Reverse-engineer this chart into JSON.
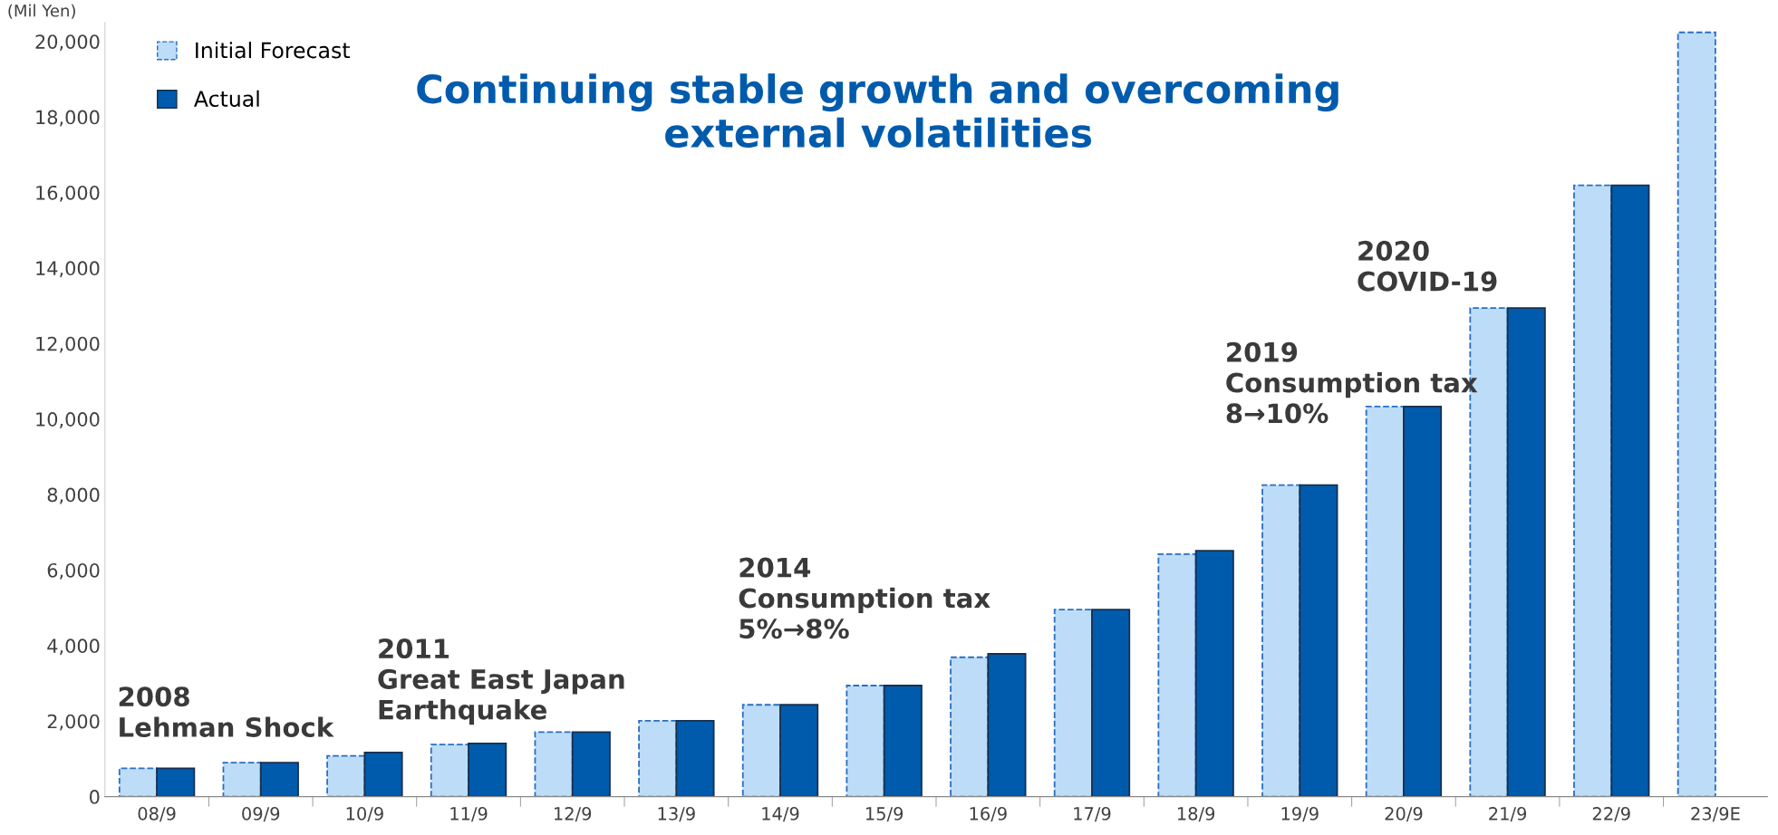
{
  "chart_data": {
    "type": "bar",
    "title": "Continuing stable growth and overcoming\nexternal volatilities",
    "ylabel": "(Mil Yen)",
    "categories": [
      "08/9",
      "09/9",
      "10/9",
      "11/9",
      "12/9",
      "13/9",
      "14/9",
      "15/9",
      "16/9",
      "17/9",
      "18/9",
      "19/9",
      "20/9",
      "21/9",
      "22/9",
      "23/9E"
    ],
    "series": [
      {
        "name": "Initial Forecast",
        "color": "#bddcf7",
        "line_style": "dashed",
        "values": [
          750,
          900,
          1080,
          1380,
          1710,
          2010,
          2430,
          2940,
          3690,
          4950,
          6420,
          8250,
          10330,
          12940,
          16190,
          20240
        ]
      },
      {
        "name": "Actual",
        "color": "#005bac",
        "line_style": "solid",
        "values": [
          750,
          900,
          1170,
          1410,
          1710,
          2010,
          2430,
          2940,
          3780,
          4950,
          6510,
          8250,
          10330,
          12940,
          16190,
          null
        ]
      }
    ],
    "ylim": [
      0,
      20500
    ],
    "yticks": [
      {
        "value": 0,
        "label": "0"
      },
      {
        "value": 2000,
        "label": "2,000"
      },
      {
        "value": 4000,
        "label": "4,000"
      },
      {
        "value": 6000,
        "label": "6,000"
      },
      {
        "value": 8000,
        "label": "8,000"
      },
      {
        "value": 10000,
        "label": "10,000"
      },
      {
        "value": 12000,
        "label": "12,000"
      },
      {
        "value": 14000,
        "label": "14,000"
      },
      {
        "value": 16000,
        "label": "16,000"
      },
      {
        "value": 18000,
        "label": "18,000"
      },
      {
        "value": 20000,
        "label": "20,000"
      }
    ],
    "grid": false,
    "legend": "top left",
    "annotations": [
      "2008\nLehman Shock",
      "2011\nGreat East Japan\nEarthquake",
      "2014\nConsumption tax\n5%→8%",
      "2019\nConsumption tax\n8→10%",
      "2020\nCOVID-19"
    ]
  }
}
